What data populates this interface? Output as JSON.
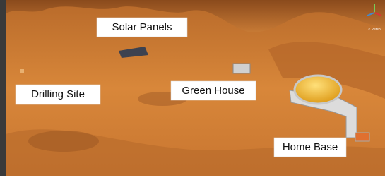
{
  "scene": {
    "labels": {
      "solar_panels": "Solar Panels",
      "drilling_site": "Drilling Site",
      "green_house": "Green House",
      "home_base": "Home Base"
    },
    "gizmo": {
      "view": "< Persp"
    }
  }
}
